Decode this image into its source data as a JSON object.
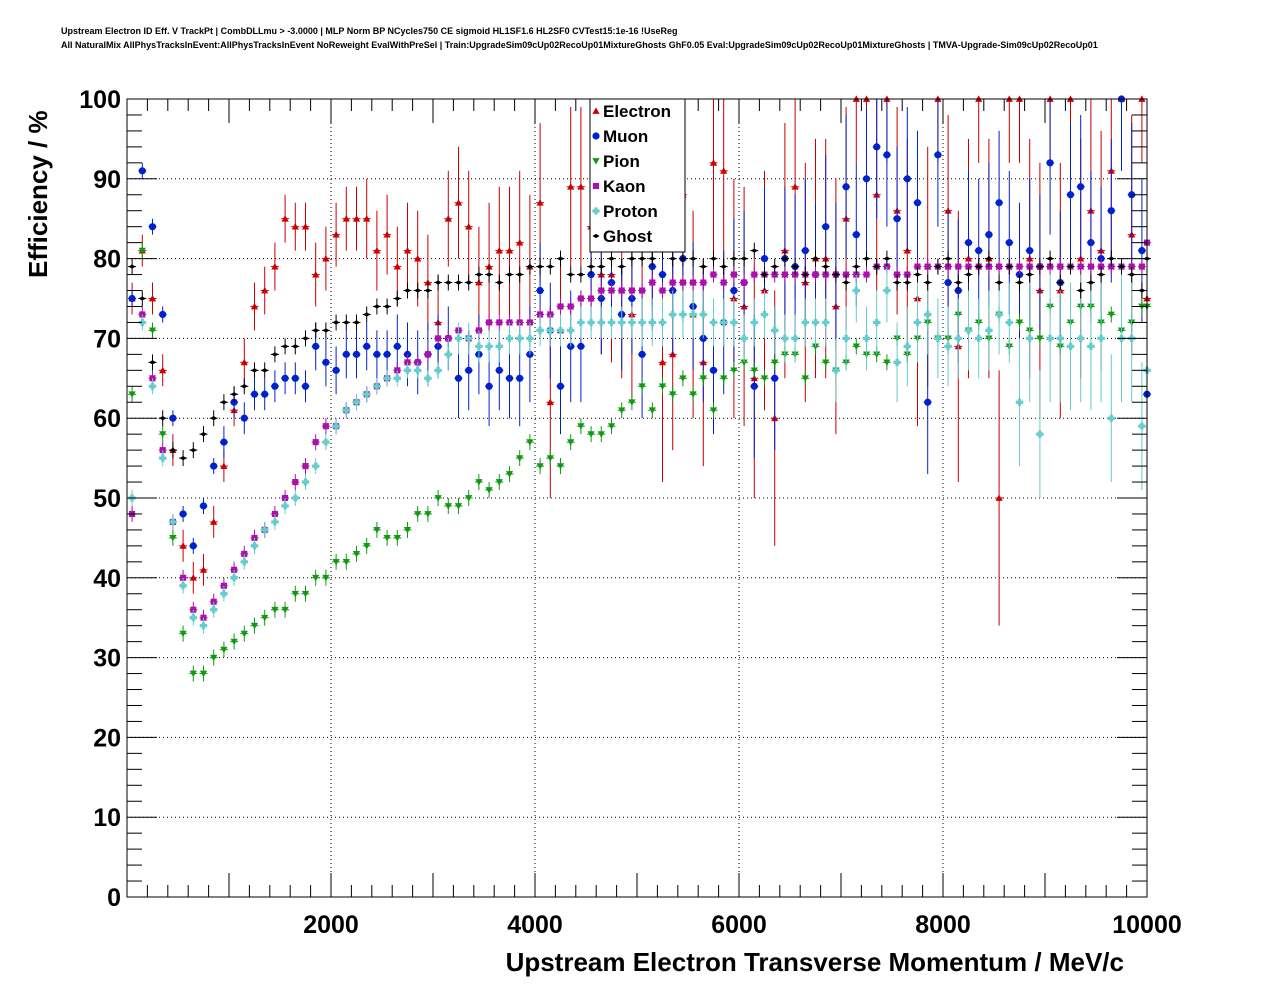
{
  "header": {
    "title_line1": "Upstream Electron ID Eff. V TrackPt | CombDLLmu > -3.0000 | MLP Norm BP NCycles750 CE sigmoid HL1SF1.6 HL2SF0 CVTest15:1e-16 !UseReg",
    "title_line2": "All NaturalMix AllPhysTracksInEvent:AllPhysTracksInEvent NoReweight EvalWithPreSel | Train:UpgradeSim09cUp02RecoUp01MixtureGhosts GhF0.05 Eval:UpgradeSim09cUp02RecoUp01MixtureGhosts | TMVA-Upgrade-Sim09cUp02RecoUp01"
  },
  "chart_data": {
    "type": "scatter",
    "xlabel": "Upstream Electron Transverse Momentum / MeV/c",
    "ylabel": "Efficiency / %",
    "xlim": [
      0,
      10000
    ],
    "ylim": [
      0,
      100
    ],
    "xticks": [
      2000,
      4000,
      6000,
      8000,
      10000
    ],
    "yticks": [
      0,
      10,
      20,
      30,
      40,
      50,
      60,
      70,
      80,
      90,
      100
    ],
    "grid": true,
    "legend_position": "top-center",
    "x": [
      50,
      150,
      250,
      350,
      450,
      550,
      650,
      750,
      850,
      950,
      1050,
      1150,
      1250,
      1350,
      1450,
      1550,
      1650,
      1750,
      1850,
      1950,
      2050,
      2150,
      2250,
      2350,
      2450,
      2550,
      2650,
      2750,
      2850,
      2950,
      3050,
      3150,
      3250,
      3350,
      3450,
      3550,
      3650,
      3750,
      3850,
      3950,
      4050,
      4150,
      4250,
      4350,
      4450,
      4550,
      4650,
      4750,
      4850,
      4950,
      5050,
      5150,
      5250,
      5350,
      5450,
      5550,
      5650,
      5750,
      5850,
      5950,
      6050,
      6150,
      6250,
      6350,
      6450,
      6550,
      6650,
      6750,
      6850,
      6950,
      7050,
      7150,
      7250,
      7350,
      7450,
      7550,
      7650,
      7750,
      7850,
      7950,
      8050,
      8150,
      8250,
      8350,
      8450,
      8550,
      8650,
      8750,
      8850,
      8950,
      9050,
      9150,
      9250,
      9350,
      9450,
      9550,
      9650,
      9750,
      9850,
      9950,
      10000
    ],
    "series": [
      {
        "name": "Electron",
        "marker": "triangle-up",
        "color": "#cc0000",
        "values": [
          75,
          81,
          75,
          66,
          56,
          44,
          40,
          41,
          47,
          54,
          61,
          67,
          74,
          76,
          79,
          85,
          84,
          84,
          78,
          80,
          83,
          85,
          85,
          85,
          81,
          83,
          79,
          81,
          80,
          77,
          72,
          85,
          87,
          84,
          77,
          79,
          81,
          81,
          82,
          79,
          87,
          62,
          71,
          89,
          89,
          84,
          78,
          78,
          76,
          73,
          82,
          86,
          67,
          68,
          88,
          73,
          67,
          92,
          91,
          75,
          74,
          65,
          76,
          60,
          81,
          89,
          77,
          80,
          80,
          74,
          85,
          100,
          100,
          88,
          100,
          86,
          81,
          75,
          79,
          100,
          86,
          69,
          80,
          100,
          80,
          50,
          100,
          100,
          80,
          76,
          100,
          76,
          100,
          80,
          86,
          81,
          91,
          100,
          83,
          100,
          75
        ],
        "errors": [
          2,
          2,
          2,
          2,
          2,
          2,
          2,
          2,
          2,
          2,
          2,
          3,
          3,
          3,
          3,
          3,
          3,
          3,
          4,
          4,
          4,
          4,
          4,
          5,
          5,
          5,
          5,
          6,
          6,
          6,
          6,
          6,
          7,
          7,
          7,
          8,
          8,
          8,
          9,
          9,
          10,
          12,
          10,
          10,
          10,
          10,
          10,
          11,
          11,
          11,
          11,
          12,
          15,
          12,
          12,
          13,
          13,
          14,
          14,
          15,
          15,
          15,
          15,
          16,
          16,
          14,
          15,
          15,
          15,
          16,
          14,
          8,
          8,
          12,
          8,
          13,
          14,
          16,
          15,
          8,
          12,
          17,
          15,
          8,
          15,
          16,
          8,
          8,
          15,
          16,
          8,
          16,
          8,
          15,
          14,
          15,
          12,
          8,
          15,
          8,
          16
        ]
      },
      {
        "name": "Muon",
        "marker": "circle",
        "color": "#0022cc",
        "values": [
          75,
          91,
          84,
          73,
          60,
          48,
          44,
          49,
          54,
          57,
          62,
          60,
          63,
          63,
          64,
          65,
          65,
          64,
          69,
          67,
          66,
          68,
          68,
          69,
          68,
          68,
          69,
          68,
          67,
          68,
          69,
          70,
          65,
          66,
          68,
          64,
          66,
          65,
          65,
          68,
          76,
          71,
          64,
          69,
          69,
          78,
          75,
          77,
          73,
          75,
          68,
          79,
          78,
          76,
          80,
          74,
          70,
          66,
          72,
          76,
          77,
          64,
          80,
          65,
          80,
          79,
          81,
          78,
          84,
          78,
          89,
          83,
          90,
          94,
          93,
          85,
          90,
          87,
          62,
          93,
          77,
          76,
          82,
          81,
          83,
          87,
          82,
          78,
          81,
          79,
          92,
          77,
          88,
          89,
          82,
          80,
          86,
          100,
          88,
          81,
          63
        ],
        "errors": [
          1,
          1,
          1,
          1,
          1,
          1,
          1,
          1,
          1,
          2,
          2,
          2,
          2,
          2,
          2,
          2,
          2,
          2,
          3,
          3,
          3,
          3,
          3,
          3,
          3,
          3,
          4,
          4,
          4,
          4,
          4,
          4,
          5,
          5,
          5,
          5,
          5,
          5,
          6,
          6,
          6,
          6,
          6,
          7,
          7,
          7,
          7,
          7,
          7,
          7,
          8,
          8,
          8,
          8,
          8,
          8,
          8,
          8,
          9,
          9,
          9,
          9,
          9,
          9,
          9,
          9,
          9,
          9,
          9,
          9,
          9,
          9,
          9,
          9,
          9,
          9,
          9,
          9,
          9,
          9,
          9,
          9,
          9,
          9,
          9,
          9,
          9,
          9,
          9,
          9,
          9,
          9,
          9,
          9,
          9,
          9,
          9,
          9,
          9,
          9,
          9
        ]
      },
      {
        "name": "Pion",
        "marker": "triangle-down",
        "color": "#119911",
        "values": [
          63,
          81,
          71,
          58,
          45,
          33,
          28,
          28,
          30,
          31,
          32,
          33,
          34,
          35,
          36,
          36,
          38,
          38,
          40,
          40,
          42,
          42,
          43,
          44,
          46,
          45,
          45,
          46,
          48,
          48,
          50,
          49,
          49,
          50,
          52,
          51,
          52,
          53,
          55,
          57,
          54,
          55,
          54,
          57,
          59,
          58,
          58,
          59,
          61,
          62,
          64,
          61,
          64,
          63,
          65,
          63,
          65,
          61,
          65,
          66,
          67,
          66,
          65,
          67,
          68,
          68,
          65,
          69,
          67,
          66,
          67,
          69,
          68,
          68,
          67,
          70,
          68,
          70,
          72,
          70,
          70,
          73,
          71,
          72,
          70,
          73,
          69,
          72,
          71,
          70,
          74,
          69,
          72,
          74,
          74,
          72,
          73,
          71,
          72,
          74,
          74
        ],
        "errors": [
          1,
          1,
          1,
          1,
          1,
          1,
          1,
          1,
          1,
          1,
          1,
          1,
          1,
          1,
          1,
          1,
          1,
          1,
          1,
          1,
          1,
          1,
          1,
          1,
          1,
          1,
          1,
          1,
          1,
          1,
          1,
          1,
          1,
          1,
          1,
          1,
          1,
          1,
          1,
          1,
          1,
          1,
          1,
          1,
          1,
          1,
          1,
          1,
          1,
          1,
          1,
          1,
          1,
          1,
          1,
          1,
          1,
          1,
          1,
          1,
          1,
          1,
          1,
          1,
          1,
          1,
          1,
          1,
          1,
          1,
          1,
          1,
          1,
          1,
          1,
          1,
          1,
          1,
          1,
          1,
          1,
          1,
          1,
          1,
          1,
          1,
          1,
          1,
          1,
          1,
          1,
          1,
          1,
          1,
          1,
          1,
          1,
          1,
          1,
          1,
          1
        ]
      },
      {
        "name": "Kaon",
        "marker": "square",
        "color": "#aa11aa",
        "values": [
          48,
          73,
          65,
          56,
          47,
          40,
          36,
          35,
          37,
          39,
          41,
          43,
          45,
          46,
          48,
          50,
          52,
          54,
          57,
          59,
          59,
          61,
          62,
          63,
          64,
          65,
          66,
          67,
          67,
          68,
          70,
          70,
          71,
          70,
          71,
          72,
          72,
          72,
          72,
          72,
          73,
          73,
          74,
          74,
          75,
          75,
          76,
          76,
          76,
          76,
          76,
          77,
          76,
          77,
          77,
          77,
          77,
          78,
          77,
          78,
          77,
          78,
          78,
          78,
          78,
          78,
          78,
          78,
          78,
          78,
          78,
          78,
          78,
          79,
          79,
          78,
          78,
          79,
          79,
          79,
          79,
          79,
          79,
          79,
          79,
          79,
          79,
          79,
          79,
          79,
          79,
          79,
          79,
          79,
          79,
          79,
          79,
          79,
          79,
          79,
          82
        ],
        "errors": [
          1,
          1,
          1,
          1,
          1,
          1,
          1,
          1,
          1,
          1,
          1,
          1,
          1,
          1,
          1,
          1,
          1,
          1,
          1,
          1,
          1,
          1,
          1,
          1,
          1,
          1,
          1,
          1,
          1,
          1,
          1,
          1,
          1,
          1,
          1,
          1,
          1,
          1,
          1,
          1,
          1,
          1,
          1,
          1,
          1,
          1,
          1,
          1,
          1,
          1,
          1,
          1,
          1,
          1,
          1,
          1,
          1,
          1,
          1,
          1,
          1,
          1,
          1,
          1,
          1,
          1,
          1,
          1,
          1,
          1,
          1,
          1,
          1,
          1,
          1,
          1,
          1,
          1,
          1,
          1,
          1,
          1,
          1,
          1,
          1,
          1,
          1,
          1,
          1,
          1,
          1,
          1,
          1,
          1,
          1,
          1,
          1,
          1,
          1,
          1,
          1
        ]
      },
      {
        "name": "Proton",
        "marker": "cross",
        "color": "#66cccc",
        "values": [
          50,
          72,
          64,
          55,
          47,
          39,
          35,
          34,
          36,
          38,
          40,
          42,
          44,
          46,
          47,
          49,
          50,
          52,
          54,
          57,
          59,
          61,
          62,
          63,
          64,
          65,
          65,
          66,
          66,
          65,
          66,
          68,
          70,
          70,
          69,
          69,
          69,
          70,
          70,
          70,
          71,
          71,
          71,
          71,
          72,
          72,
          72,
          72,
          72,
          72,
          72,
          72,
          72,
          73,
          73,
          73,
          73,
          72,
          72,
          72,
          70,
          72,
          73,
          71,
          70,
          70,
          72,
          72,
          72,
          66,
          70,
          76,
          70,
          72,
          76,
          67,
          69,
          72,
          73,
          70,
          69,
          70,
          71,
          70,
          71,
          73,
          72,
          62,
          70,
          58,
          70,
          70,
          69,
          70,
          69,
          70,
          60,
          70,
          70,
          59,
          66
        ],
        "errors": [
          1,
          1,
          1,
          1,
          1,
          1,
          1,
          1,
          1,
          1,
          1,
          1,
          1,
          1,
          1,
          1,
          1,
          1,
          1,
          1,
          1,
          1,
          1,
          1,
          1,
          1,
          1,
          1,
          1,
          1,
          1,
          2,
          2,
          2,
          2,
          2,
          2,
          2,
          2,
          2,
          2,
          2,
          2,
          2,
          2,
          2,
          2,
          2,
          2,
          2,
          3,
          3,
          3,
          3,
          3,
          3,
          3,
          3,
          3,
          3,
          3,
          3,
          3,
          3,
          3,
          3,
          3,
          3,
          3,
          4,
          4,
          4,
          4,
          4,
          4,
          5,
          5,
          5,
          5,
          5,
          5,
          5,
          5,
          5,
          5,
          5,
          5,
          8,
          8,
          8,
          8,
          8,
          8,
          8,
          8,
          8,
          8,
          8,
          8,
          8,
          8
        ]
      },
      {
        "name": "Ghost",
        "marker": "diamond",
        "color": "#000000",
        "values": [
          79,
          75,
          67,
          60,
          56,
          55,
          56,
          58,
          60,
          62,
          63,
          64,
          66,
          66,
          68,
          69,
          69,
          70,
          71,
          71,
          72,
          72,
          72,
          73,
          74,
          74,
          75,
          76,
          76,
          76,
          77,
          77,
          77,
          77,
          78,
          78,
          77,
          78,
          78,
          79,
          79,
          79,
          80,
          78,
          78,
          79,
          79,
          80,
          79,
          80,
          80,
          80,
          81,
          80,
          80,
          80,
          79,
          80,
          79,
          80,
          80,
          81,
          78,
          79,
          80,
          79,
          78,
          80,
          79,
          78,
          77,
          79,
          80,
          79,
          80,
          77,
          77,
          78,
          77,
          79,
          80,
          77,
          78,
          79,
          80,
          77,
          79,
          77,
          78,
          79,
          80,
          77,
          79,
          76,
          77,
          78,
          80,
          79,
          78,
          76,
          80
        ],
        "errors": [
          1,
          1,
          1,
          1,
          1,
          1,
          1,
          1,
          1,
          1,
          1,
          1,
          1,
          1,
          1,
          1,
          1,
          1,
          1,
          1,
          1,
          1,
          1,
          1,
          1,
          1,
          1,
          1,
          1,
          1,
          1,
          1,
          1,
          1,
          1,
          1,
          1,
          1,
          1,
          1,
          1,
          1,
          1,
          1,
          1,
          1,
          1,
          1,
          1,
          1,
          1,
          1,
          1,
          1,
          1,
          1,
          1,
          1,
          1,
          1,
          1,
          1,
          1,
          1,
          1,
          1,
          1,
          1,
          1,
          1,
          1,
          1,
          1,
          1,
          1,
          1,
          1,
          1,
          1,
          1,
          1,
          1,
          1,
          1,
          1,
          1,
          1,
          1,
          1,
          1,
          1,
          1,
          1,
          1,
          1,
          1,
          1,
          1,
          1,
          1,
          1
        ]
      }
    ]
  }
}
